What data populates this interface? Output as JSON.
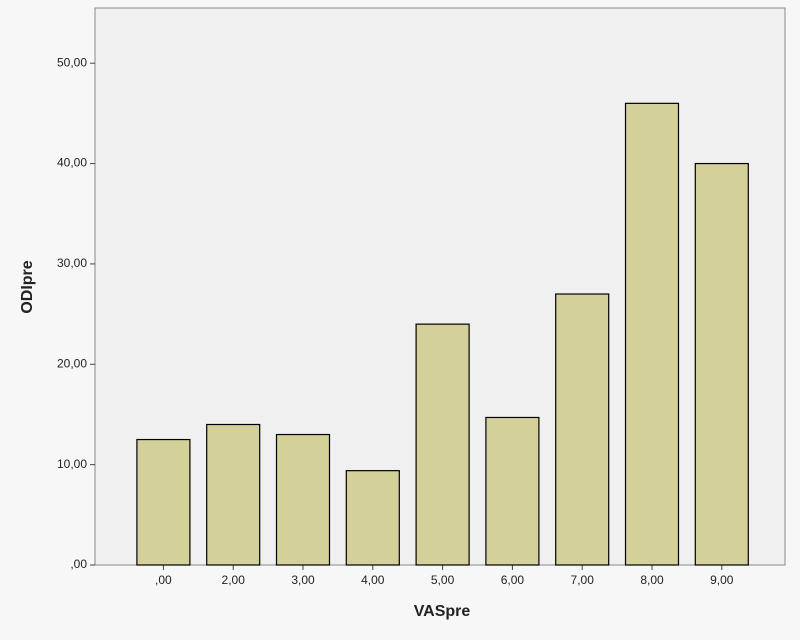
{
  "chart_data": {
    "type": "bar",
    "x_label": "VASpre",
    "y_label": "ODIpre",
    "categories": [
      ",00",
      "2,00",
      "3,00",
      "4,00",
      "5,00",
      "6,00",
      "7,00",
      "8,00",
      "9,00"
    ],
    "values": [
      12.5,
      14.0,
      13.0,
      9.4,
      24.0,
      14.7,
      27.0,
      46.0,
      40.0
    ],
    "color": "#d4d09a",
    "ylim": [
      0,
      55.5
    ],
    "yticks": [
      {
        "value": 0,
        "label": ",00"
      },
      {
        "value": 10,
        "label": "10,00"
      },
      {
        "value": 20,
        "label": "20,00"
      },
      {
        "value": 30,
        "label": "30,00"
      },
      {
        "value": 40,
        "label": "40,00"
      },
      {
        "value": 50,
        "label": "50,00"
      }
    ],
    "grid": false
  }
}
